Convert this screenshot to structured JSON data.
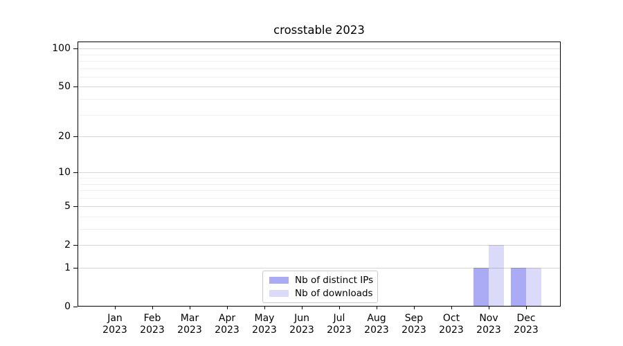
{
  "chart_data": {
    "type": "bar",
    "title": "crosstable 2023",
    "categories": [
      "Jan",
      "Feb",
      "Mar",
      "Apr",
      "May",
      "Jun",
      "Jul",
      "Aug",
      "Sep",
      "Oct",
      "Nov",
      "Dec"
    ],
    "year_label": "2023",
    "series": [
      {
        "name": "Nb of distinct IPs",
        "color": "#aaaaf5",
        "values": [
          0,
          0,
          0,
          0,
          0,
          0,
          0,
          0,
          0,
          0,
          1,
          1
        ]
      },
      {
        "name": "Nb of downloads",
        "color": "#dbdbf9",
        "values": [
          0,
          0,
          0,
          0,
          0,
          0,
          0,
          0,
          0,
          0,
          2,
          1
        ]
      }
    ],
    "xlabel": "",
    "ylabel": "",
    "y_axis": {
      "scale": "symlog",
      "major_ticks": [
        0,
        1,
        2,
        5,
        10,
        20,
        50,
        100
      ],
      "minor_gridlines": [
        3,
        4,
        6,
        7,
        8,
        9,
        30,
        40,
        60,
        70,
        80,
        90
      ],
      "ylim": [
        0,
        113.6
      ]
    },
    "legend": {
      "position": "lower center",
      "entries": [
        "Nb of distinct IPs",
        "Nb of downloads"
      ]
    },
    "grid": {
      "major_color": "rgba(0,0,0,0.16)",
      "minor_color": "#f0f0f0",
      "on": true
    },
    "colors": {
      "spine": "#000000",
      "text": "#000000",
      "background": "#ffffff"
    }
  }
}
